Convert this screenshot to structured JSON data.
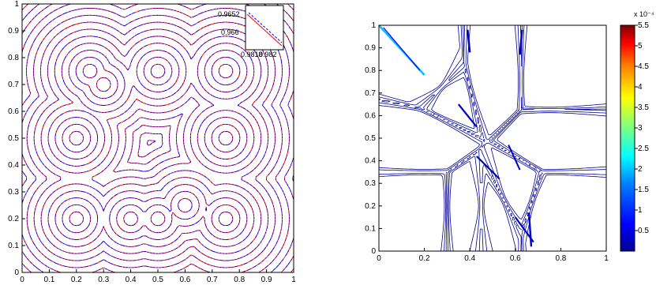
{
  "chart_data": [
    {
      "type": "contour",
      "title": "",
      "xlabel": "",
      "ylabel": "",
      "xlim": [
        0,
        1
      ],
      "ylim": [
        0,
        1
      ],
      "x_ticks": [
        "0",
        "0.1",
        "0.2",
        "0.3",
        "0.4",
        "0.5",
        "0.6",
        "0.7",
        "0.8",
        "0.9",
        "1"
      ],
      "y_ticks": [
        "0",
        "0.1",
        "0.2",
        "0.3",
        "0.4",
        "0.5",
        "0.6",
        "0.7",
        "0.8",
        "0.9",
        "1"
      ],
      "series_colors": [
        "#ff0000",
        "#0000ff"
      ],
      "sources": [
        {
          "x": 0.2,
          "y": 0.2
        },
        {
          "x": 0.4,
          "y": 0.2
        },
        {
          "x": 0.5,
          "y": 0.2
        },
        {
          "x": 0.6,
          "y": 0.25
        },
        {
          "x": 0.75,
          "y": 0.2
        },
        {
          "x": 0.2,
          "y": 0.5
        },
        {
          "x": 0.75,
          "y": 0.5
        },
        {
          "x": 0.3,
          "y": 0.7
        },
        {
          "x": 0.25,
          "y": 0.75
        },
        {
          "x": 0.5,
          "y": 0.75
        },
        {
          "x": 0.75,
          "y": 0.75
        }
      ],
      "inset": {
        "labels": [
          "0.9652",
          "0.966",
          "0.9818",
          "0.982"
        ]
      }
    },
    {
      "type": "contour",
      "title": "",
      "xlabel": "",
      "ylabel": "",
      "xlim": [
        0,
        1
      ],
      "ylim": [
        0,
        1
      ],
      "x_ticks": [
        "0",
        "0.2",
        "0.4",
        "0.6",
        "0.8",
        "1"
      ],
      "y_ticks": [
        "0",
        "0.1",
        "0.2",
        "0.3",
        "0.4",
        "0.5",
        "0.6",
        "0.7",
        "0.8",
        "0.9",
        "1"
      ],
      "colorbar": {
        "exponent_label": "x 10⁻⁴",
        "range": [
          0,
          5.5
        ],
        "ticks": [
          "0.5",
          "1",
          "1.5",
          "2",
          "2.5",
          "3",
          "3.5",
          "4",
          "4.5",
          "5",
          "5.5"
        ],
        "colormap": [
          "#00008f",
          "#0000ff",
          "#0060ff",
          "#00bfff",
          "#20ffdf",
          "#7fff7f",
          "#dfff20",
          "#ffbf00",
          "#ff6000",
          "#ff0000",
          "#8f0000"
        ]
      }
    }
  ]
}
